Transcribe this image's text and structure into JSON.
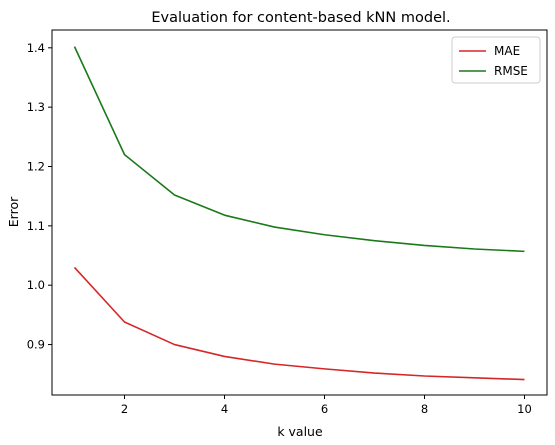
{
  "chart_data": {
    "type": "line",
    "title": "Evaluation for content-based kNN model.",
    "xlabel": "k value",
    "ylabel": "Error",
    "x": [
      1,
      2,
      3,
      4,
      5,
      6,
      7,
      8,
      9,
      10
    ],
    "xlim": [
      0.55,
      10.45
    ],
    "ylim": [
      0.815,
      1.43
    ],
    "xticks": [
      2,
      4,
      6,
      8,
      10
    ],
    "yticks": [
      0.9,
      1.0,
      1.1,
      1.2,
      1.3,
      1.4
    ],
    "ytick_labels": [
      "0.9",
      "1.0",
      "1.1",
      "1.2",
      "1.3",
      "1.4"
    ],
    "grid": false,
    "legend_position": "top-right",
    "series": [
      {
        "name": "MAE",
        "color": "#d62728",
        "values": [
          1.03,
          0.938,
          0.9,
          0.88,
          0.867,
          0.859,
          0.852,
          0.847,
          0.844,
          0.841
        ]
      },
      {
        "name": "RMSE",
        "color": "#1a7a1a",
        "values": [
          1.402,
          1.22,
          1.152,
          1.118,
          1.098,
          1.085,
          1.075,
          1.067,
          1.061,
          1.057
        ]
      }
    ]
  }
}
